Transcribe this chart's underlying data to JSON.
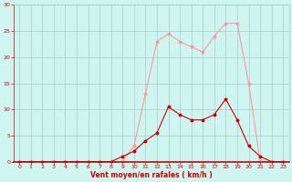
{
  "x": [
    0,
    1,
    2,
    3,
    4,
    5,
    6,
    7,
    8,
    9,
    10,
    11,
    12,
    13,
    14,
    15,
    16,
    17,
    18,
    19,
    20,
    21,
    22,
    23
  ],
  "rafales": [
    0,
    0,
    0,
    0,
    0,
    0,
    0,
    0,
    0,
    1,
    2,
    4,
    5.5,
    10.5,
    9,
    8,
    8,
    9,
    12,
    8,
    3,
    1,
    0,
    0
  ],
  "moyen": [
    0,
    0,
    0,
    0,
    0,
    0,
    0,
    0,
    0,
    0,
    3,
    13,
    23,
    24.5,
    23,
    22,
    21,
    24,
    26.5,
    26.5,
    15,
    0,
    0,
    0
  ],
  "line_color_rafales": "#cc0000",
  "line_color_moyen": "#ff9999",
  "background_color": "#cef5f0",
  "grid_color": "#aacccc",
  "axis_color": "#cc0000",
  "xlabel": "Vent moyen/en rafales ( km/h )",
  "xlim": [
    -0.5,
    23.5
  ],
  "ylim": [
    0,
    30
  ],
  "yticks": [
    0,
    5,
    10,
    15,
    20,
    25,
    30
  ],
  "xticks": [
    0,
    1,
    2,
    3,
    4,
    5,
    6,
    7,
    8,
    9,
    10,
    11,
    12,
    13,
    14,
    15,
    16,
    17,
    18,
    19,
    20,
    21,
    22,
    23
  ]
}
